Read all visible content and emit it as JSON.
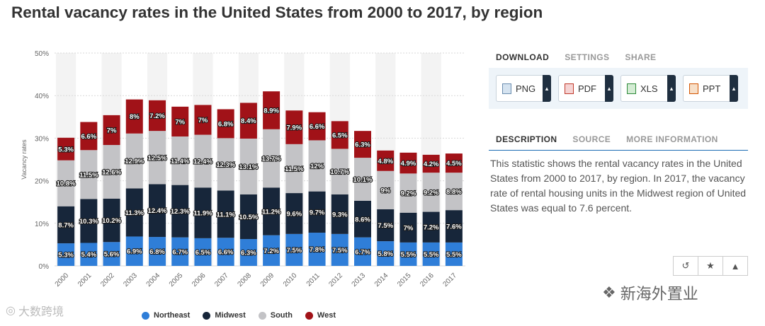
{
  "title": "Rental vacancy rates in the United States from 2000 to 2017, by region",
  "chart_data": {
    "type": "bar",
    "stacked": true,
    "categories": [
      "2000",
      "2001",
      "2002",
      "2003",
      "2004",
      "2005",
      "2006",
      "2007",
      "2008",
      "2009",
      "2010",
      "2011",
      "2012",
      "2013",
      "2014",
      "2015",
      "2016",
      "2017"
    ],
    "series": [
      {
        "name": "Northeast",
        "color": "#2f7ed8",
        "values": [
          5.3,
          5.4,
          5.6,
          6.9,
          6.8,
          6.7,
          6.5,
          6.6,
          6.3,
          7.2,
          7.5,
          7.8,
          7.5,
          6.7,
          5.8,
          5.5,
          5.5,
          5.5
        ]
      },
      {
        "name": "Midwest",
        "color": "#17263a",
        "values": [
          8.7,
          10.3,
          10.2,
          11.3,
          12.4,
          12.3,
          11.9,
          11.1,
          10.5,
          11.2,
          9.6,
          9.7,
          9.3,
          8.6,
          7.5,
          7,
          7.2,
          7.6
        ]
      },
      {
        "name": "South",
        "color": "#c3c3c6",
        "values": [
          10.8,
          11.5,
          12.6,
          12.9,
          12.5,
          11.4,
          12.4,
          12.3,
          13.1,
          13.7,
          11.5,
          12,
          10.7,
          10.1,
          9,
          9.2,
          9.2,
          8.8
        ]
      },
      {
        "name": "West",
        "color": "#a11218",
        "values": [
          5.3,
          6.6,
          7,
          8,
          7.2,
          7,
          7,
          6.8,
          8.4,
          8.9,
          7.9,
          6.6,
          6.5,
          6.3,
          4.8,
          4.9,
          4.2,
          4.5
        ]
      }
    ],
    "ylabel": "Vacancy rates",
    "ylim": [
      0,
      50
    ],
    "yticks": [
      "0%",
      "10%",
      "20%",
      "30%",
      "40%",
      "50%"
    ],
    "grid": true,
    "legend": "bottom",
    "label_suffix": "%"
  },
  "sidebar": {
    "tabs_top": [
      "DOWNLOAD",
      "SETTINGS",
      "SHARE"
    ],
    "downloads": [
      "PNG",
      "PDF",
      "XLS",
      "PPT"
    ],
    "tabs_info": [
      "DESCRIPTION",
      "SOURCE",
      "MORE INFORMATION"
    ],
    "description": "This statistic shows the rental vacancy rates in the United States from 2000 to 2017, by region. In 2017, the vacancy rate of rental housing units in the Midwest region of United States was equal to 7.6 percent."
  },
  "actions": [
    "undo-icon",
    "star-icon",
    "bell-icon"
  ],
  "watermarks": {
    "left": "大数跨境",
    "right": "新海外置业"
  }
}
